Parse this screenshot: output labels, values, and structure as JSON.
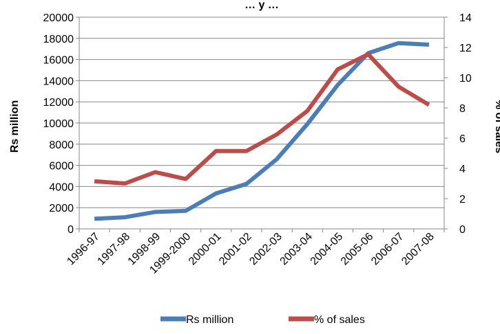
{
  "chart_data": {
    "type": "line",
    "title": "… y …",
    "categories": [
      "1996-97",
      "1997-98",
      "1998-99",
      "1999-2000",
      "2000-01",
      "2001-02",
      "2002-03",
      "2003-04",
      "2004-05",
      "2005-06",
      "2006-07",
      "2007-08"
    ],
    "series": [
      {
        "name": "Rs million",
        "axis": "left",
        "color": "#4a7ebb",
        "values": [
          950,
          1100,
          1600,
          1700,
          3350,
          4250,
          6600,
          9900,
          13600,
          16600,
          17550,
          17400
        ]
      },
      {
        "name": "% of sales",
        "axis": "right",
        "color": "#be4b48",
        "values": [
          3.15,
          3.0,
          3.75,
          3.3,
          5.15,
          5.15,
          6.25,
          7.8,
          10.55,
          11.55,
          9.4,
          8.2
        ]
      }
    ],
    "ylabel": "Rs million",
    "y2label": "% of sales",
    "ylim": [
      0,
      20000
    ],
    "y2lim": [
      0,
      14
    ],
    "yticks": [
      "0",
      "2000",
      "4000",
      "6000",
      "8000",
      "10000",
      "12000",
      "14000",
      "16000",
      "18000",
      "20000"
    ],
    "y2ticks": [
      "0",
      "2",
      "4",
      "6",
      "8",
      "10",
      "12",
      "14"
    ],
    "grid": true,
    "legend": "bottom"
  }
}
